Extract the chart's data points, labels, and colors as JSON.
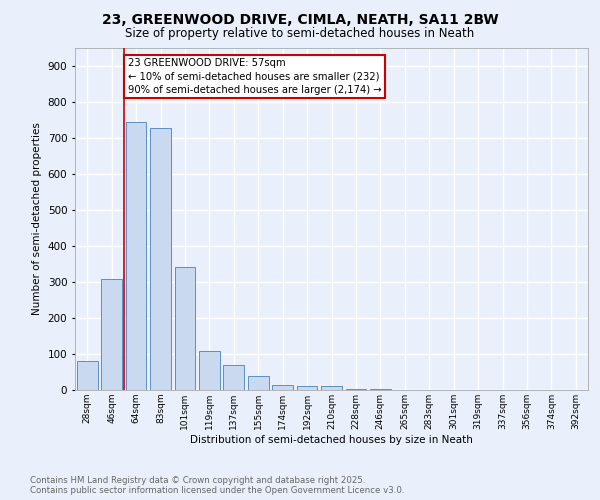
{
  "title_line1": "23, GREENWOOD DRIVE, CIMLA, NEATH, SA11 2BW",
  "title_line2": "Size of property relative to semi-detached houses in Neath",
  "xlabel": "Distribution of semi-detached houses by size in Neath",
  "ylabel": "Number of semi-detached properties",
  "categories": [
    "28sqm",
    "46sqm",
    "64sqm",
    "83sqm",
    "101sqm",
    "119sqm",
    "137sqm",
    "155sqm",
    "174sqm",
    "192sqm",
    "210sqm",
    "228sqm",
    "246sqm",
    "265sqm",
    "283sqm",
    "301sqm",
    "319sqm",
    "337sqm",
    "356sqm",
    "374sqm",
    "392sqm"
  ],
  "values": [
    80,
    307,
    743,
    727,
    341,
    108,
    68,
    38,
    15,
    12,
    11,
    3,
    2,
    0,
    0,
    0,
    0,
    0,
    0,
    0,
    0
  ],
  "bar_color": "#c9d9f0",
  "bar_edge_color": "#5b8fc9",
  "annotation_title": "23 GREENWOOD DRIVE: 57sqm",
  "annotation_line2": "← 10% of semi-detached houses are smaller (232)",
  "annotation_line3": "90% of semi-detached houses are larger (2,174) →",
  "annotation_box_color": "#ffffff",
  "annotation_box_edge_color": "#cc0000",
  "vline_color": "#cc0000",
  "ylim": [
    0,
    950
  ],
  "yticks": [
    0,
    100,
    200,
    300,
    400,
    500,
    600,
    700,
    800,
    900
  ],
  "bg_color": "#eaf0fb",
  "plot_bg_color": "#eaf0fb",
  "grid_color": "#ffffff",
  "footer_line1": "Contains HM Land Registry data © Crown copyright and database right 2025.",
  "footer_line2": "Contains public sector information licensed under the Open Government Licence v3.0."
}
